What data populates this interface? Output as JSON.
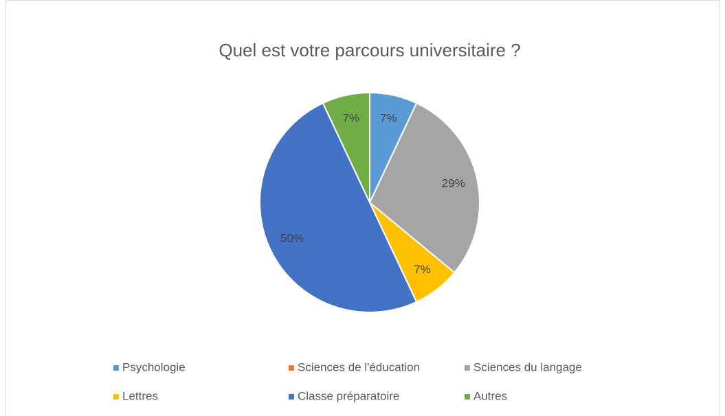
{
  "chart_data": {
    "type": "pie",
    "title": "Quel est votre parcours universitaire ?",
    "categories": [
      "Psychologie",
      "Sciences de l'éducation",
      "Sciences du langage",
      "Lettres",
      "Classe préparatoire",
      "Autres"
    ],
    "values": [
      7,
      0,
      29,
      7,
      50,
      7
    ],
    "value_labels": [
      "7%",
      null,
      "29%",
      "7%",
      "50%",
      "7%"
    ],
    "colors": [
      "#5b9bd5",
      "#ed7d31",
      "#a5a5a5",
      "#ffc000",
      "#4472c4",
      "#70ad47"
    ],
    "legend": "bottom"
  }
}
